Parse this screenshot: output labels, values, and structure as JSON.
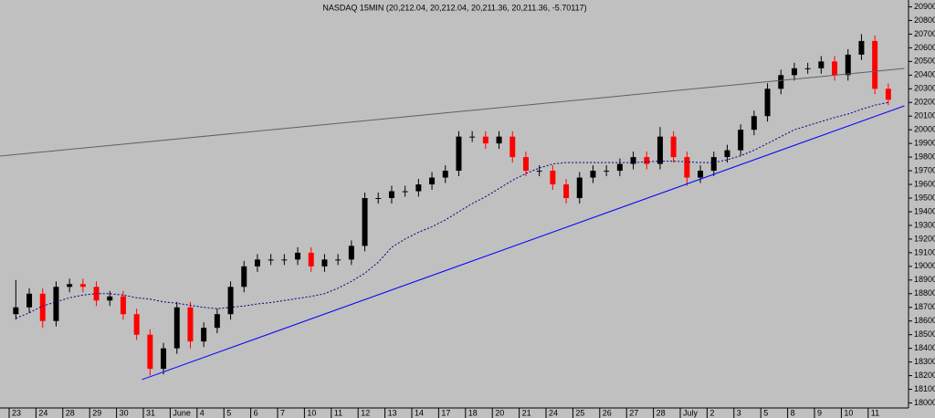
{
  "chart_data": {
    "type": "candlestick",
    "title": "NASDAQ 15MIN (20,212.04, 20,212.04, 20,211.36, 20,211.36, -5.70117)",
    "categories": [
      "23",
      null,
      "24",
      null,
      "28",
      null,
      "29",
      null,
      "30",
      null,
      "31",
      null,
      "June",
      null,
      "4",
      null,
      "5",
      null,
      "6",
      null,
      "7",
      null,
      "10",
      null,
      "11",
      null,
      "12",
      null,
      "13",
      null,
      "14",
      null,
      "17",
      null,
      "18",
      null,
      "20",
      null,
      "21",
      null,
      "24",
      null,
      "25",
      null,
      "26",
      null,
      "27",
      null,
      "28",
      null,
      "July",
      null,
      "2",
      null,
      "3",
      null,
      "5",
      null,
      "8",
      null,
      "9",
      null,
      "10",
      null,
      "11",
      null
    ],
    "open": [
      18650,
      18700,
      18800,
      18600,
      18850,
      18870,
      18850,
      18750,
      18780,
      18650,
      18500,
      18250,
      18400,
      18700,
      18450,
      18550,
      18650,
      18850,
      19000,
      19050,
      19050,
      19050,
      19100,
      19000,
      19050,
      19050,
      19150,
      19500,
      19500,
      19550,
      19550,
      19600,
      19650,
      19700,
      19950,
      19950,
      19900,
      19950,
      19800,
      19700,
      19700,
      19600,
      19500,
      19650,
      19700,
      19700,
      19750,
      19800,
      19750,
      19950,
      19800,
      19650,
      19700,
      19800,
      19850,
      20000,
      20100,
      20300,
      20400,
      20450,
      20450,
      20500,
      20400,
      20550,
      20650,
      20300
    ],
    "high": [
      18900,
      18840,
      18840,
      18890,
      18910,
      18910,
      18890,
      18820,
      18820,
      18690,
      18540,
      18440,
      18740,
      18740,
      18590,
      18690,
      18890,
      19040,
      19090,
      19090,
      19090,
      19140,
      19140,
      19090,
      19090,
      19190,
      19540,
      19540,
      19590,
      19590,
      19640,
      19690,
      19740,
      19990,
      19990,
      19990,
      19990,
      19990,
      19840,
      19740,
      19740,
      19640,
      19690,
      19740,
      19740,
      19790,
      19840,
      19840,
      20020,
      19990,
      19840,
      19740,
      19840,
      19890,
      20040,
      20140,
      20340,
      20440,
      20490,
      20490,
      20540,
      20540,
      20590,
      20700,
      20690,
      20340
    ],
    "low": [
      18610,
      18660,
      18550,
      18560,
      18810,
      18810,
      18710,
      18710,
      18610,
      18460,
      18200,
      18210,
      18360,
      18400,
      18410,
      18510,
      18610,
      18810,
      18960,
      19010,
      19010,
      19010,
      18960,
      18960,
      19010,
      19010,
      19110,
      19460,
      19460,
      19510,
      19510,
      19560,
      19610,
      19660,
      19910,
      19860,
      19860,
      19760,
      19660,
      19660,
      19560,
      19460,
      19460,
      19610,
      19660,
      19660,
      19710,
      19710,
      19710,
      19760,
      19590,
      19610,
      19660,
      19760,
      19810,
      19960,
      20060,
      20260,
      20360,
      20410,
      20410,
      20360,
      20360,
      20510,
      20260,
      20180
    ],
    "close": [
      18700,
      18800,
      18600,
      18850,
      18870,
      18850,
      18750,
      18780,
      18650,
      18500,
      18250,
      18400,
      18700,
      18450,
      18550,
      18650,
      18850,
      19000,
      19050,
      19050,
      19050,
      19100,
      19000,
      19050,
      19050,
      19150,
      19500,
      19500,
      19550,
      19550,
      19600,
      19650,
      19700,
      19950,
      19950,
      19900,
      19950,
      19800,
      19700,
      19700,
      19600,
      19500,
      19650,
      19700,
      19700,
      19750,
      19800,
      19750,
      19950,
      19800,
      19650,
      19700,
      19800,
      19850,
      20000,
      20100,
      20300,
      20400,
      20450,
      20450,
      20500,
      20400,
      20550,
      20650,
      20300,
      20220
    ],
    "up_color": "#000000",
    "down_color": "#ff0000",
    "moving_average": {
      "color": "#000080",
      "values": [
        18620,
        18660,
        18710,
        18740,
        18770,
        18790,
        18800,
        18800,
        18790,
        18770,
        18760,
        18740,
        18730,
        18715,
        18700,
        18690,
        18700,
        18710,
        18725,
        18735,
        18750,
        18765,
        18780,
        18800,
        18840,
        18890,
        18950,
        19030,
        19140,
        19200,
        19250,
        19290,
        19340,
        19400,
        19460,
        19510,
        19570,
        19630,
        19680,
        19720,
        19750,
        19760,
        19760,
        19760,
        19760,
        19760,
        19760,
        19765,
        19770,
        19770,
        19765,
        19760,
        19760,
        19780,
        19810,
        19850,
        19900,
        19950,
        20000,
        20030,
        20060,
        20090,
        20115,
        20150,
        20180,
        20200
      ]
    },
    "trendlines": [
      {
        "color": "#0000ff",
        "x": [
          9.4,
          66.2
        ],
        "values": [
          18171,
          20175
        ]
      },
      {
        "color": "#606060",
        "x": [
          -1.2,
          66.2
        ],
        "values": [
          19807,
          20449
        ]
      }
    ],
    "ylim": [
      17950,
      20950
    ],
    "yticks": [
      18000,
      18100,
      18200,
      18300,
      18400,
      18500,
      18600,
      18700,
      18800,
      18900,
      19000,
      19100,
      19200,
      19300,
      19400,
      19500,
      19600,
      19700,
      19800,
      19900,
      20000,
      20100,
      20200,
      20300,
      20400,
      20500,
      20600,
      20700,
      20800,
      20900
    ]
  }
}
